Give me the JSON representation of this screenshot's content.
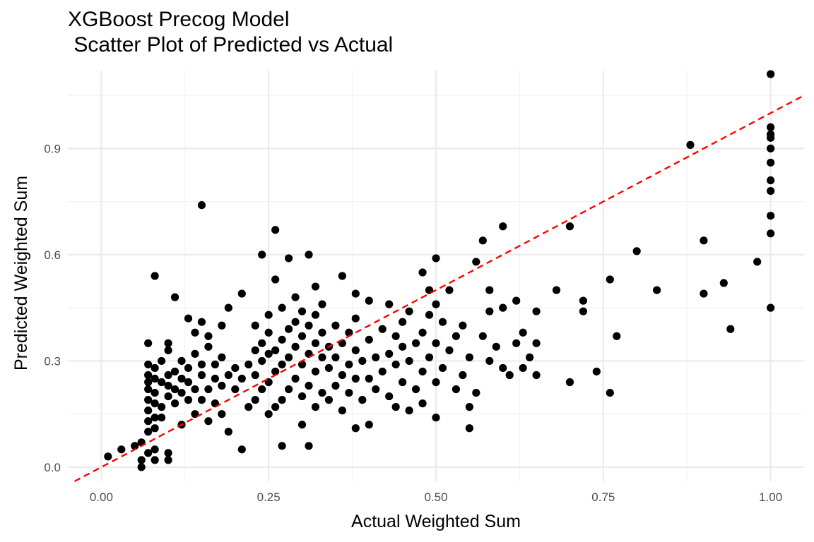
{
  "chart_data": {
    "type": "scatter",
    "title": "XGBoost Precog Model",
    "subtitle": " Scatter Plot of Predicted vs Actual",
    "xlabel": "Actual Weighted Sum",
    "ylabel": "Predicted Weighted Sum",
    "xlim": [
      -0.05,
      1.05
    ],
    "ylim": [
      -0.04,
      1.12
    ],
    "x_ticks": [
      0.0,
      0.25,
      0.5,
      0.75,
      1.0
    ],
    "x_tick_labels": [
      "0.00",
      "0.25",
      "0.50",
      "0.75",
      "1.00"
    ],
    "y_ticks": [
      0.0,
      0.3,
      0.6,
      0.9
    ],
    "y_tick_labels": [
      "0.0",
      "0.3",
      "0.6",
      "0.9"
    ],
    "grid": true,
    "reference_line": {
      "slope": 1,
      "intercept": 0,
      "style": "dashed",
      "color": "#ff0000"
    },
    "point_color": "#000000",
    "points": [
      [
        0.01,
        0.03
      ],
      [
        0.03,
        0.05
      ],
      [
        0.05,
        0.06
      ],
      [
        0.06,
        0.0
      ],
      [
        0.06,
        0.02
      ],
      [
        0.06,
        0.07
      ],
      [
        0.07,
        0.04
      ],
      [
        0.07,
        0.1
      ],
      [
        0.07,
        0.13
      ],
      [
        0.07,
        0.16
      ],
      [
        0.07,
        0.19
      ],
      [
        0.07,
        0.22
      ],
      [
        0.07,
        0.24
      ],
      [
        0.07,
        0.26
      ],
      [
        0.07,
        0.29
      ],
      [
        0.07,
        0.35
      ],
      [
        0.08,
        0.05
      ],
      [
        0.08,
        0.02
      ],
      [
        0.08,
        0.11
      ],
      [
        0.08,
        0.14
      ],
      [
        0.08,
        0.18
      ],
      [
        0.08,
        0.21
      ],
      [
        0.08,
        0.25
      ],
      [
        0.08,
        0.28
      ],
      [
        0.08,
        0.54
      ],
      [
        0.09,
        0.14
      ],
      [
        0.09,
        0.17
      ],
      [
        0.09,
        0.24
      ],
      [
        0.09,
        0.3
      ],
      [
        0.1,
        0.02
      ],
      [
        0.1,
        0.04
      ],
      [
        0.1,
        0.2
      ],
      [
        0.1,
        0.23
      ],
      [
        0.1,
        0.26
      ],
      [
        0.1,
        0.33
      ],
      [
        0.1,
        0.35
      ],
      [
        0.11,
        0.18
      ],
      [
        0.11,
        0.22
      ],
      [
        0.11,
        0.27
      ],
      [
        0.11,
        0.48
      ],
      [
        0.12,
        0.12
      ],
      [
        0.12,
        0.21
      ],
      [
        0.12,
        0.25
      ],
      [
        0.12,
        0.3
      ],
      [
        0.13,
        0.19
      ],
      [
        0.13,
        0.24
      ],
      [
        0.13,
        0.28
      ],
      [
        0.13,
        0.42
      ],
      [
        0.14,
        0.15
      ],
      [
        0.14,
        0.22
      ],
      [
        0.14,
        0.32
      ],
      [
        0.14,
        0.38
      ],
      [
        0.15,
        0.19
      ],
      [
        0.15,
        0.26
      ],
      [
        0.15,
        0.29
      ],
      [
        0.15,
        0.41
      ],
      [
        0.15,
        0.74
      ],
      [
        0.16,
        0.13
      ],
      [
        0.16,
        0.22
      ],
      [
        0.16,
        0.34
      ],
      [
        0.16,
        0.37
      ],
      [
        0.17,
        0.18
      ],
      [
        0.17,
        0.25
      ],
      [
        0.17,
        0.29
      ],
      [
        0.18,
        0.15
      ],
      [
        0.18,
        0.23
      ],
      [
        0.18,
        0.31
      ],
      [
        0.18,
        0.4
      ],
      [
        0.19,
        0.1
      ],
      [
        0.19,
        0.26
      ],
      [
        0.19,
        0.45
      ],
      [
        0.2,
        0.22
      ],
      [
        0.2,
        0.28
      ],
      [
        0.21,
        0.05
      ],
      [
        0.21,
        0.25
      ],
      [
        0.21,
        0.49
      ],
      [
        0.22,
        0.17
      ],
      [
        0.22,
        0.29
      ],
      [
        0.23,
        0.19
      ],
      [
        0.23,
        0.26
      ],
      [
        0.23,
        0.33
      ],
      [
        0.23,
        0.4
      ],
      [
        0.24,
        0.22
      ],
      [
        0.24,
        0.3
      ],
      [
        0.24,
        0.6
      ],
      [
        0.24,
        0.35
      ],
      [
        0.25,
        0.15
      ],
      [
        0.25,
        0.24
      ],
      [
        0.25,
        0.32
      ],
      [
        0.25,
        0.38
      ],
      [
        0.25,
        0.43
      ],
      [
        0.26,
        0.17
      ],
      [
        0.26,
        0.27
      ],
      [
        0.26,
        0.33
      ],
      [
        0.26,
        0.53
      ],
      [
        0.26,
        0.67
      ],
      [
        0.27,
        0.19
      ],
      [
        0.27,
        0.29
      ],
      [
        0.27,
        0.36
      ],
      [
        0.27,
        0.45
      ],
      [
        0.27,
        0.06
      ],
      [
        0.28,
        0.22
      ],
      [
        0.28,
        0.31
      ],
      [
        0.28,
        0.39
      ],
      [
        0.28,
        0.59
      ],
      [
        0.29,
        0.25
      ],
      [
        0.29,
        0.34
      ],
      [
        0.29,
        0.41
      ],
      [
        0.29,
        0.48
      ],
      [
        0.3,
        0.12
      ],
      [
        0.3,
        0.2
      ],
      [
        0.3,
        0.29
      ],
      [
        0.3,
        0.37
      ],
      [
        0.3,
        0.44
      ],
      [
        0.31,
        0.23
      ],
      [
        0.31,
        0.32
      ],
      [
        0.31,
        0.4
      ],
      [
        0.31,
        0.6
      ],
      [
        0.31,
        0.06
      ],
      [
        0.32,
        0.17
      ],
      [
        0.32,
        0.27
      ],
      [
        0.32,
        0.35
      ],
      [
        0.32,
        0.43
      ],
      [
        0.32,
        0.51
      ],
      [
        0.33,
        0.21
      ],
      [
        0.33,
        0.31
      ],
      [
        0.33,
        0.38
      ],
      [
        0.33,
        0.46
      ],
      [
        0.34,
        0.19
      ],
      [
        0.34,
        0.28
      ],
      [
        0.34,
        0.34
      ],
      [
        0.35,
        0.23
      ],
      [
        0.35,
        0.31
      ],
      [
        0.35,
        0.4
      ],
      [
        0.36,
        0.16
      ],
      [
        0.36,
        0.26
      ],
      [
        0.36,
        0.35
      ],
      [
        0.36,
        0.54
      ],
      [
        0.37,
        0.21
      ],
      [
        0.37,
        0.29
      ],
      [
        0.37,
        0.38
      ],
      [
        0.38,
        0.11
      ],
      [
        0.38,
        0.25
      ],
      [
        0.38,
        0.33
      ],
      [
        0.38,
        0.42
      ],
      [
        0.38,
        0.49
      ],
      [
        0.39,
        0.19
      ],
      [
        0.39,
        0.3
      ],
      [
        0.4,
        0.12
      ],
      [
        0.4,
        0.25
      ],
      [
        0.4,
        0.36
      ],
      [
        0.4,
        0.47
      ],
      [
        0.41,
        0.22
      ],
      [
        0.41,
        0.31
      ],
      [
        0.42,
        0.27
      ],
      [
        0.42,
        0.39
      ],
      [
        0.43,
        0.2
      ],
      [
        0.43,
        0.32
      ],
      [
        0.43,
        0.46
      ],
      [
        0.44,
        0.17
      ],
      [
        0.44,
        0.29
      ],
      [
        0.44,
        0.37
      ],
      [
        0.45,
        0.24
      ],
      [
        0.45,
        0.34
      ],
      [
        0.45,
        0.41
      ],
      [
        0.46,
        0.16
      ],
      [
        0.46,
        0.3
      ],
      [
        0.46,
        0.44
      ],
      [
        0.47,
        0.22
      ],
      [
        0.47,
        0.35
      ],
      [
        0.48,
        0.18
      ],
      [
        0.48,
        0.27
      ],
      [
        0.48,
        0.38
      ],
      [
        0.48,
        0.55
      ],
      [
        0.49,
        0.31
      ],
      [
        0.49,
        0.43
      ],
      [
        0.49,
        0.5
      ],
      [
        0.5,
        0.14
      ],
      [
        0.5,
        0.24
      ],
      [
        0.5,
        0.35
      ],
      [
        0.5,
        0.46
      ],
      [
        0.5,
        0.59
      ],
      [
        0.51,
        0.28
      ],
      [
        0.51,
        0.41
      ],
      [
        0.52,
        0.33
      ],
      [
        0.52,
        0.5
      ],
      [
        0.53,
        0.22
      ],
      [
        0.53,
        0.37
      ],
      [
        0.54,
        0.26
      ],
      [
        0.54,
        0.4
      ],
      [
        0.55,
        0.11
      ],
      [
        0.55,
        0.17
      ],
      [
        0.55,
        0.31
      ],
      [
        0.56,
        0.21
      ],
      [
        0.56,
        0.58
      ],
      [
        0.57,
        0.37
      ],
      [
        0.57,
        0.64
      ],
      [
        0.58,
        0.3
      ],
      [
        0.58,
        0.44
      ],
      [
        0.58,
        0.5
      ],
      [
        0.59,
        0.34
      ],
      [
        0.6,
        0.28
      ],
      [
        0.6,
        0.45
      ],
      [
        0.6,
        0.68
      ],
      [
        0.61,
        0.26
      ],
      [
        0.62,
        0.35
      ],
      [
        0.62,
        0.47
      ],
      [
        0.63,
        0.28
      ],
      [
        0.63,
        0.38
      ],
      [
        0.64,
        0.31
      ],
      [
        0.65,
        0.26
      ],
      [
        0.65,
        0.35
      ],
      [
        0.65,
        0.44
      ],
      [
        0.68,
        0.5
      ],
      [
        0.7,
        0.68
      ],
      [
        0.7,
        0.24
      ],
      [
        0.72,
        0.44
      ],
      [
        0.72,
        0.47
      ],
      [
        0.74,
        0.27
      ],
      [
        0.76,
        0.21
      ],
      [
        0.76,
        0.53
      ],
      [
        0.77,
        0.37
      ],
      [
        0.8,
        0.61
      ],
      [
        0.83,
        0.5
      ],
      [
        0.88,
        0.91
      ],
      [
        0.9,
        0.64
      ],
      [
        0.9,
        0.49
      ],
      [
        0.93,
        0.52
      ],
      [
        0.94,
        0.39
      ],
      [
        0.98,
        0.58
      ],
      [
        1.0,
        1.11
      ],
      [
        1.0,
        0.96
      ],
      [
        1.0,
        0.94
      ],
      [
        1.0,
        0.93
      ],
      [
        1.0,
        0.9
      ],
      [
        1.0,
        0.86
      ],
      [
        1.0,
        0.81
      ],
      [
        1.0,
        0.78
      ],
      [
        1.0,
        0.71
      ],
      [
        1.0,
        0.66
      ],
      [
        1.0,
        0.45
      ]
    ]
  }
}
